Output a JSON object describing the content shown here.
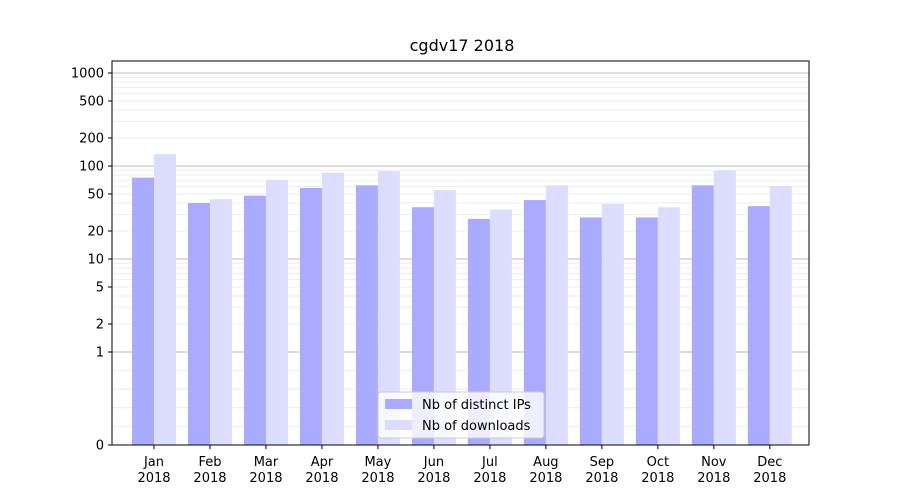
{
  "chart_data": {
    "type": "bar",
    "title": "cgdv17 2018",
    "xlabel": "",
    "ylabel": "",
    "scale": "symlog",
    "ylim": [
      0,
      1200
    ],
    "yticks": [
      0,
      1,
      2,
      5,
      10,
      20,
      50,
      100,
      200,
      500,
      1000
    ],
    "categories": [
      "Jan\n2018",
      "Feb\n2018",
      "Mar\n2018",
      "Apr\n2018",
      "May\n2018",
      "Jun\n2018",
      "Jul\n2018",
      "Aug\n2018",
      "Sep\n2018",
      "Oct\n2018",
      "Nov\n2018",
      "Dec\n2018"
    ],
    "series": [
      {
        "name": "Nb of distinct IPs",
        "color": "#aaaaff",
        "values": [
          75,
          40,
          48,
          58,
          62,
          36,
          27,
          43,
          28,
          28,
          62,
          37
        ]
      },
      {
        "name": "Nb of downloads",
        "color": "#ddddff",
        "values": [
          134,
          44,
          71,
          85,
          88,
          55,
          34,
          62,
          39,
          36,
          89,
          61
        ]
      }
    ],
    "grid": true,
    "legend_position": "bottom-center"
  }
}
